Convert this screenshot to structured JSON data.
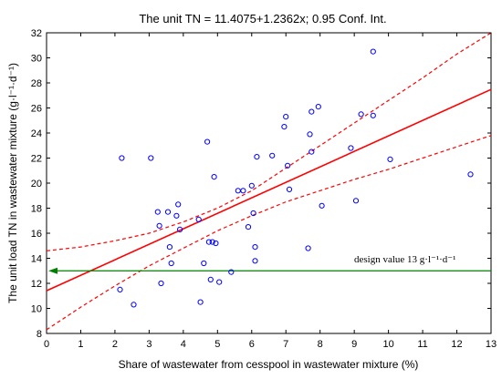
{
  "chart_data": {
    "type": "scatter",
    "title": "The unit TN = 11.4075+1.2362x; 0.95 Conf. Int.",
    "xlabel": "Share of wastewater from cesspool in wastewater mixture (%)",
    "ylabel": "The unit load TN in wastewater mixture (g·l⁻¹·d⁻¹)",
    "xlim": [
      0,
      13
    ],
    "ylim": [
      8,
      32
    ],
    "xticks": [
      "0",
      "1",
      "2",
      "3",
      "4",
      "5",
      "6",
      "7",
      "8",
      "9",
      "10",
      "11",
      "12",
      "13"
    ],
    "yticks": [
      "8",
      "10",
      "12",
      "14",
      "16",
      "18",
      "20",
      "22",
      "24",
      "26",
      "28",
      "30",
      "32"
    ],
    "grid": false,
    "colors": {
      "points": "#0000ff",
      "fit": "#ff0000",
      "design": "#008000"
    },
    "regression": {
      "intercept": 11.4075,
      "slope": 1.2362,
      "conf_level": 0.95
    },
    "confidence_band": {
      "x": [
        0,
        1,
        2,
        3,
        4,
        5,
        6,
        7,
        8,
        9,
        10,
        11,
        12,
        13
      ],
      "lower": [
        8.3,
        10.1,
        11.8,
        13.4,
        14.8,
        16.2,
        17.4,
        18.5,
        19.4,
        20.3,
        21.1,
        22.0,
        22.9,
        23.8
      ],
      "upper": [
        14.6,
        14.9,
        15.4,
        16.0,
        16.9,
        18.0,
        19.4,
        21.2,
        23.0,
        24.8,
        26.6,
        28.4,
        30.3,
        32.0
      ]
    },
    "design_line": {
      "y": 13,
      "label": "design value 13 g·l⁻¹·d⁻¹"
    },
    "points": {
      "x": [
        2.15,
        2.2,
        2.55,
        3.05,
        3.25,
        3.3,
        3.35,
        3.55,
        3.6,
        3.65,
        3.8,
        3.85,
        3.9,
        4.45,
        4.5,
        4.6,
        4.7,
        4.75,
        4.8,
        4.85,
        4.9,
        4.95,
        5.05,
        5.4,
        5.6,
        5.75,
        5.9,
        6.0,
        6.05,
        6.1,
        6.1,
        6.15,
        6.6,
        6.95,
        7.0,
        7.05,
        7.1,
        7.65,
        7.7,
        7.75,
        7.75,
        7.95,
        8.05,
        8.9,
        9.05,
        9.2,
        9.55,
        9.55,
        10.05,
        12.4
      ],
      "y": [
        11.5,
        22.0,
        10.3,
        22.0,
        17.7,
        16.6,
        12.0,
        17.7,
        14.9,
        13.6,
        17.4,
        18.3,
        16.3,
        17.1,
        10.5,
        13.6,
        23.3,
        15.3,
        12.3,
        15.3,
        20.5,
        15.2,
        12.1,
        12.9,
        19.4,
        19.4,
        16.5,
        19.8,
        17.6,
        14.9,
        13.8,
        22.1,
        22.2,
        24.5,
        25.3,
        21.4,
        19.5,
        14.8,
        23.9,
        22.5,
        25.7,
        26.1,
        18.2,
        22.8,
        18.6,
        25.5,
        25.4,
        30.5,
        21.9,
        20.7
      ]
    }
  }
}
